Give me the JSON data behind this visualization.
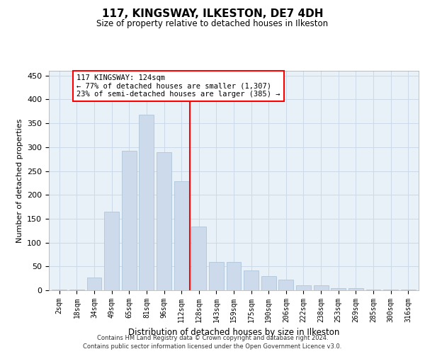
{
  "title": "117, KINGSWAY, ILKESTON, DE7 4DH",
  "subtitle": "Size of property relative to detached houses in Ilkeston",
  "xlabel": "Distribution of detached houses by size in Ilkeston",
  "ylabel": "Number of detached properties",
  "categories": [
    "2sqm",
    "18sqm",
    "34sqm",
    "49sqm",
    "65sqm",
    "81sqm",
    "96sqm",
    "112sqm",
    "128sqm",
    "143sqm",
    "159sqm",
    "175sqm",
    "190sqm",
    "206sqm",
    "222sqm",
    "238sqm",
    "253sqm",
    "269sqm",
    "285sqm",
    "300sqm",
    "316sqm"
  ],
  "values": [
    1,
    1,
    27,
    165,
    293,
    368,
    290,
    228,
    133,
    60,
    60,
    42,
    30,
    22,
    11,
    11,
    5,
    4,
    2,
    1,
    1
  ],
  "bar_color": "#ccdaeb",
  "bar_edgecolor": "#a8c0d6",
  "grid_color": "#ccd9e8",
  "background_color": "#e8f0f8",
  "vline_x": 7.5,
  "vline_color": "red",
  "annotation_text": "117 KINGSWAY: 124sqm\n← 77% of detached houses are smaller (1,307)\n23% of semi-detached houses are larger (385) →",
  "annotation_box_color": "red",
  "yticks": [
    0,
    50,
    100,
    150,
    200,
    250,
    300,
    350,
    400,
    450
  ],
  "ylim": [
    0,
    460
  ],
  "footer1": "Contains HM Land Registry data © Crown copyright and database right 2024.",
  "footer2": "Contains public sector information licensed under the Open Government Licence v3.0."
}
